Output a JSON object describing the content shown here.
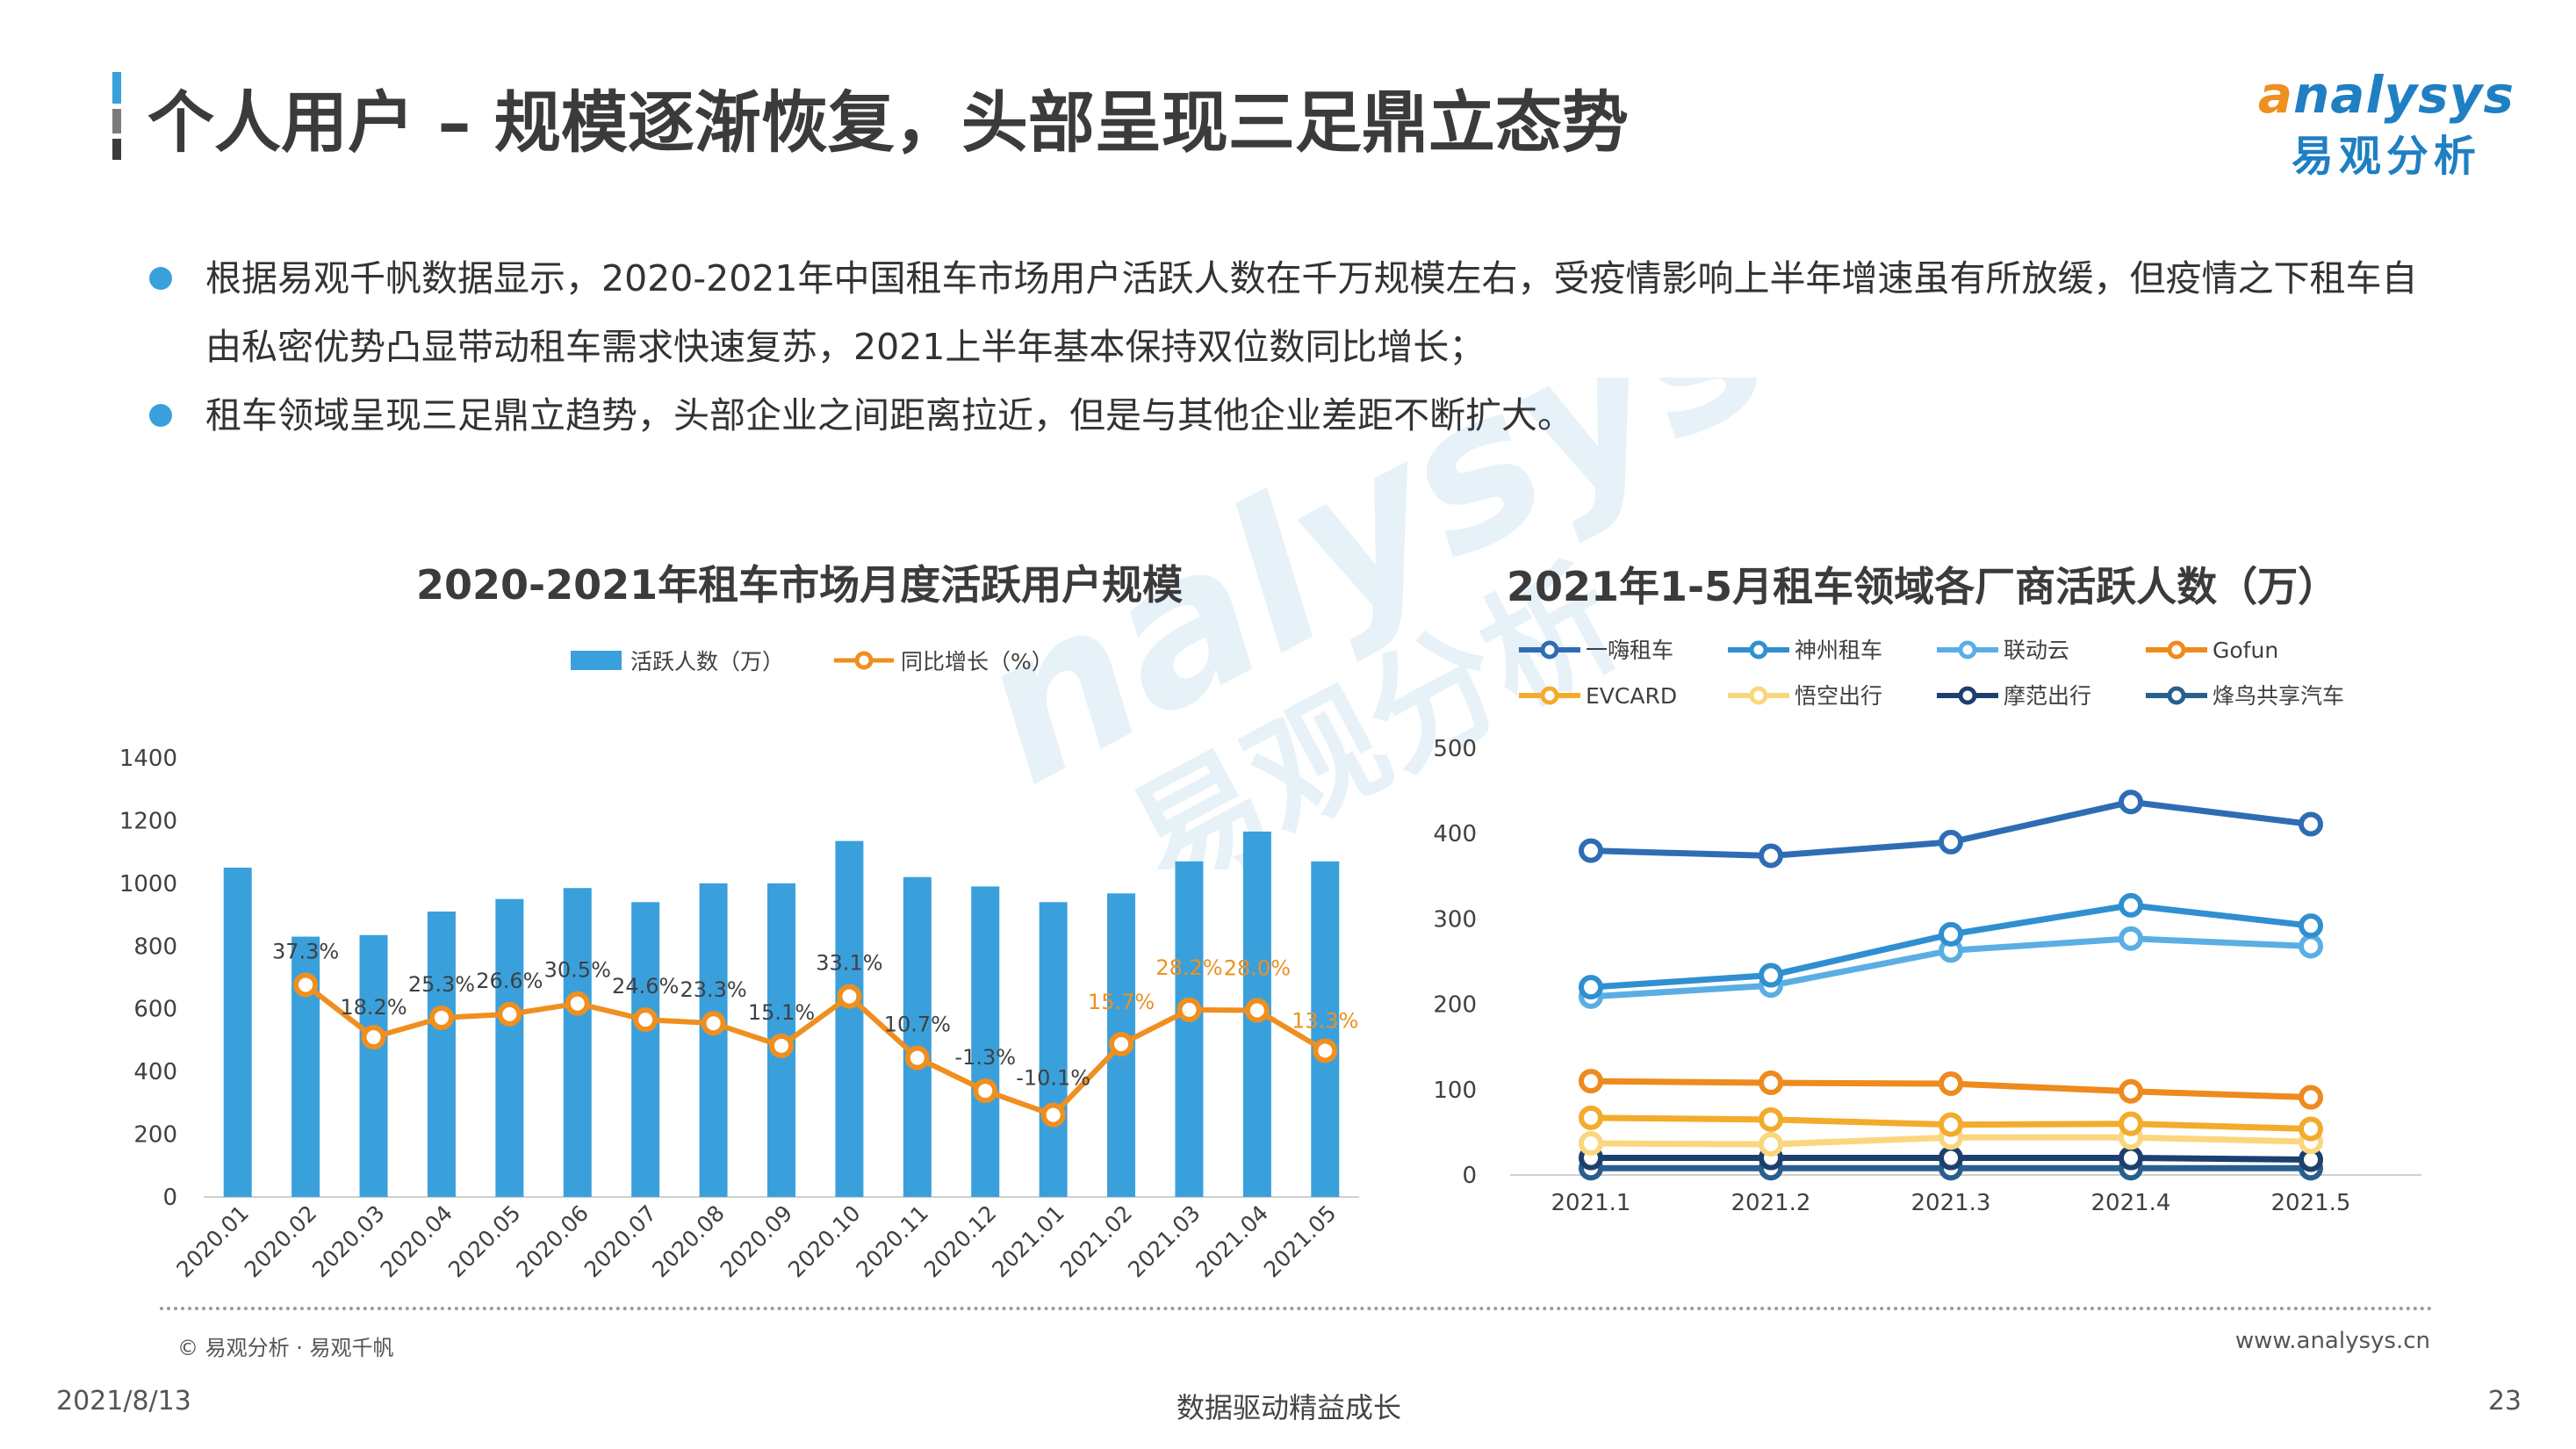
{
  "header": {
    "title": "个人用户 – 规模逐渐恢复，头部呈现三足鼎立态势",
    "logo_en": "nalysys",
    "logo_cn": "易观分析"
  },
  "bullets": [
    "根据易观千帆数据显示，2020-2021年中国租车市场用户活跃人数在千万规模左右，受疫情影响上半年增速虽有所放缓，但疫情之下租车自由私密优势凸显带动租车需求快速复苏，2021上半年基本保持双位数同比增长；",
    "租车领域呈现三足鼎立趋势，头部企业之间距离拉近，但是与其他企业差距不断扩大。"
  ],
  "watermark": {
    "en": "nalysys",
    "cn": "易观分析"
  },
  "colors": {
    "accent_blue": "#3aa0dc",
    "accent_orange": "#ef8f1f",
    "brand_blue": "#1f7fc3"
  },
  "chart_data": [
    {
      "type": "bar",
      "title": "2020-2021年租车市场月度活跃用户规模",
      "categories": [
        "2020.01",
        "2020.02",
        "2020.03",
        "2020.04",
        "2020.05",
        "2020.06",
        "2020.07",
        "2020.08",
        "2020.09",
        "2020.10",
        "2020.11",
        "2020.12",
        "2021.01",
        "2021.02",
        "2021.03",
        "2021.04",
        "2021.05"
      ],
      "series": [
        {
          "name": "活跃人数（万）",
          "kind": "bar",
          "color": "#3aa0dc",
          "values": [
            1050,
            830,
            835,
            910,
            950,
            985,
            940,
            1000,
            1000,
            1135,
            1020,
            990,
            940,
            968,
            1070,
            1165,
            1070
          ]
        },
        {
          "name": "同比增长（%）",
          "kind": "line",
          "color": "#ef8f1f",
          "values": [
            null,
            37.3,
            18.2,
            25.3,
            26.6,
            30.5,
            24.6,
            23.3,
            15.1,
            33.1,
            10.7,
            -1.3,
            -10.1,
            15.7,
            28.2,
            28.0,
            13.3
          ],
          "labels": [
            "",
            "37.3%",
            "18.2%",
            "25.3%",
            "26.6%",
            "30.5%",
            "24.6%",
            "23.3%",
            "15.1%",
            "33.1%",
            "10.7%",
            "-1.3%",
            "-10.1%",
            "15.7%",
            "28.2%",
            "28.0%",
            "13.3%"
          ]
        }
      ],
      "ylim": [
        0,
        1400
      ],
      "yticks": [
        "0",
        "200",
        "400",
        "600",
        "800",
        "1000",
        "1200",
        "1400"
      ],
      "legend": "top-center",
      "grid": false
    },
    {
      "type": "line",
      "title": "2021年1-5月租车领域各厂商活跃人数（万）",
      "categories": [
        "2021.1",
        "2021.2",
        "2021.3",
        "2021.4",
        "2021.5"
      ],
      "series": [
        {
          "name": "一嗨租车",
          "color": "#2e6db3",
          "values": [
            380,
            374,
            390,
            437,
            411
          ]
        },
        {
          "name": "神州租车",
          "color": "#2f8fd0",
          "values": [
            220,
            234,
            282,
            316,
            292
          ]
        },
        {
          "name": "联动云",
          "color": "#5aaee3",
          "values": [
            209,
            222,
            263,
            277,
            268
          ]
        },
        {
          "name": "Gofun",
          "color": "#ee8a1e",
          "values": [
            110,
            108,
            107,
            98,
            91
          ]
        },
        {
          "name": "EVCARD",
          "color": "#f3ab2c",
          "values": [
            67,
            65,
            59,
            60,
            54
          ]
        },
        {
          "name": "悟空出行",
          "color": "#fad77e",
          "values": [
            37,
            36,
            44,
            44,
            39
          ]
        },
        {
          "name": "摩范出行",
          "color": "#1d3f6e",
          "values": [
            20,
            20,
            20,
            20,
            18
          ]
        },
        {
          "name": "烽鸟共享汽车",
          "color": "#285f8f",
          "values": [
            8,
            8,
            8,
            8,
            8
          ]
        }
      ],
      "ylim": [
        0,
        500
      ],
      "yticks": [
        "0",
        "100",
        "200",
        "300",
        "400",
        "500"
      ],
      "legend": "top",
      "grid": false
    }
  ],
  "footer": {
    "source": "© 易观分析 · 易观千帆",
    "site": "www.analysys.cn",
    "date": "2021/8/13",
    "slogan": "数据驱动精益成长",
    "page": "23"
  }
}
